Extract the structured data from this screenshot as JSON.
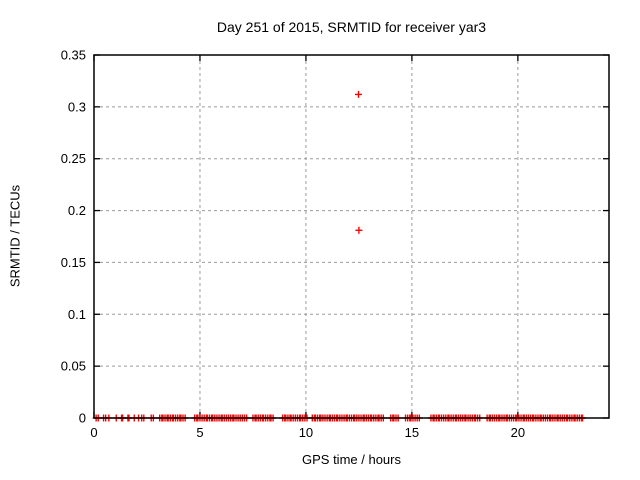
{
  "window": {
    "background_color": "#ffffff"
  },
  "chart_data": {
    "type": "scatter",
    "title": "Day 251 of 2015, SRMTID for receiver yar3",
    "xlabel": "GPS time / hours",
    "ylabel": "SRMTID / TECUs",
    "xlim": [
      0,
      24.3
    ],
    "ylim": [
      0,
      0.35
    ],
    "xticks": [
      0,
      5,
      10,
      15,
      20
    ],
    "xtick_labels": [
      "0",
      "5",
      "10",
      "15",
      "20"
    ],
    "yticks": [
      0,
      0.05,
      0.1,
      0.15,
      0.2,
      0.25,
      0.3,
      0.35
    ],
    "ytick_labels": [
      "0",
      "0.05",
      "0.1",
      "0.15",
      "0.2",
      "0.25",
      "0.3",
      "0.35"
    ],
    "grid": true,
    "legend": "none",
    "marker": "plus",
    "colors": {
      "marker": "#ff0000",
      "grid": "#9b9b9b",
      "axis": "#000000",
      "text": "#000000"
    },
    "series": [
      {
        "name": "SRMTID",
        "outliers": [
          [
            12.48,
            0.312
          ],
          [
            12.5,
            0.181
          ]
        ],
        "baseline_value": 0,
        "baseline_x": [
          0.1,
          0.2,
          0.45,
          0.55,
          0.7,
          1.05,
          1.3,
          1.35,
          1.6,
          1.65,
          1.9,
          2.1,
          2.25,
          2.35,
          2.7,
          2.8,
          3.1,
          3.2,
          3.25,
          3.35,
          3.45,
          3.5,
          3.6,
          3.7,
          3.75,
          3.85,
          3.95,
          4.05,
          4.1,
          4.2,
          4.3,
          4.75,
          4.85,
          4.9,
          5.0,
          5.1,
          5.2,
          5.3,
          5.35,
          5.45,
          5.55,
          5.6,
          5.7,
          5.8,
          5.9,
          6.0,
          6.05,
          6.15,
          6.25,
          6.35,
          6.45,
          6.55,
          6.6,
          6.7,
          6.8,
          6.9,
          7.0,
          7.1,
          7.2,
          7.5,
          7.6,
          7.65,
          7.75,
          7.85,
          7.95,
          8.0,
          8.1,
          8.2,
          8.3,
          8.35,
          8.45,
          8.9,
          9.0,
          9.05,
          9.15,
          9.25,
          9.3,
          9.4,
          9.5,
          9.6,
          9.7,
          9.75,
          9.85,
          9.95,
          10.05,
          10.3,
          10.4,
          10.45,
          10.55,
          10.65,
          10.7,
          10.8,
          10.9,
          11.0,
          11.1,
          11.15,
          11.25,
          11.35,
          11.45,
          11.5,
          11.6,
          11.7,
          11.8,
          11.9,
          11.95,
          12.05,
          12.15,
          12.25,
          12.3,
          12.4,
          12.5,
          12.6,
          12.7,
          12.75,
          12.85,
          12.95,
          13.05,
          13.1,
          13.2,
          13.3,
          13.4,
          13.45,
          13.55,
          13.65,
          14.0,
          14.1,
          14.15,
          14.25,
          14.35,
          14.7,
          14.8,
          14.9,
          14.95,
          15.05,
          15.15,
          15.25,
          15.35,
          15.9,
          16.0,
          16.05,
          16.15,
          16.25,
          16.3,
          16.4,
          16.5,
          16.6,
          16.7,
          16.75,
          16.85,
          16.95,
          17.05,
          17.1,
          17.2,
          17.3,
          17.4,
          17.5,
          17.55,
          17.65,
          17.75,
          17.85,
          17.95,
          18.0,
          18.1,
          18.2,
          18.55,
          18.65,
          18.7,
          18.8,
          18.9,
          19.0,
          19.1,
          19.15,
          19.25,
          19.35,
          19.45,
          19.5,
          19.6,
          19.7,
          19.8,
          19.9,
          19.95,
          20.05,
          20.15,
          20.25,
          20.3,
          20.4,
          20.5,
          20.6,
          20.7,
          20.75,
          20.85,
          20.95,
          21.05,
          21.1,
          21.2,
          21.3,
          21.4,
          21.5,
          21.55,
          21.65,
          21.75,
          21.85,
          21.9,
          22.0,
          22.1,
          22.2,
          22.3,
          22.35,
          22.45,
          22.55,
          22.65,
          22.7,
          22.8,
          22.9,
          23.0,
          23.05
        ]
      }
    ]
  }
}
